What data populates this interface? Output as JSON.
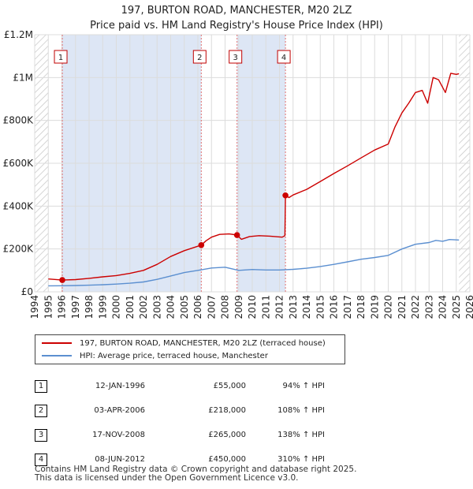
{
  "title_line1": "197, BURTON ROAD, MANCHESTER, M20 2LZ",
  "title_line2": "Price paid vs. HM Land Registry's House Price Index (HPI)",
  "chart_data": {
    "type": "line",
    "x_range": [
      1994,
      2026
    ],
    "ylim": [
      0,
      1200000
    ],
    "y_ticks": [
      0,
      200000,
      400000,
      600000,
      800000,
      1000000,
      1200000
    ],
    "y_tick_labels": [
      "£0",
      "£200K",
      "£400K",
      "£600K",
      "£800K",
      "£1M",
      "£1.2M"
    ],
    "x_ticks": [
      1994,
      1995,
      1996,
      1997,
      1998,
      1999,
      2000,
      2001,
      2002,
      2003,
      2004,
      2005,
      2006,
      2007,
      2008,
      2009,
      2010,
      2011,
      2012,
      2013,
      2014,
      2015,
      2016,
      2017,
      2018,
      2019,
      2020,
      2021,
      2022,
      2023,
      2024,
      2025,
      2026
    ],
    "grid": true,
    "hatched_ranges": [
      [
        1994,
        1995.0
      ],
      [
        2025.2,
        2026
      ]
    ],
    "shaded_ranges": [
      [
        1996.03,
        2006.25
      ],
      [
        2008.88,
        2012.44
      ]
    ],
    "series": [
      {
        "name": "197, BURTON ROAD, MANCHESTER, M20 2LZ (terraced house)",
        "color": "#cc0000",
        "points": [
          [
            1995.0,
            60000
          ],
          [
            1996.03,
            55000
          ],
          [
            1997,
            57000
          ],
          [
            1998,
            63000
          ],
          [
            1999,
            70000
          ],
          [
            2000,
            76000
          ],
          [
            2001,
            86000
          ],
          [
            2002,
            100000
          ],
          [
            2003,
            128000
          ],
          [
            2004,
            165000
          ],
          [
            2005,
            192000
          ],
          [
            2006.25,
            218000
          ],
          [
            2006.6,
            238000
          ],
          [
            2007,
            255000
          ],
          [
            2007.6,
            268000
          ],
          [
            2008.3,
            270000
          ],
          [
            2008.88,
            265000
          ],
          [
            2009.2,
            245000
          ],
          [
            2009.8,
            258000
          ],
          [
            2010.5,
            262000
          ],
          [
            2011.3,
            260000
          ],
          [
            2012.2,
            255000
          ],
          [
            2012.4,
            262000
          ],
          [
            2012.44,
            450000
          ],
          [
            2012.7,
            440000
          ],
          [
            2013,
            452000
          ],
          [
            2014,
            478000
          ],
          [
            2015,
            515000
          ],
          [
            2016,
            552000
          ],
          [
            2017,
            588000
          ],
          [
            2018,
            625000
          ],
          [
            2019,
            662000
          ],
          [
            2020,
            690000
          ],
          [
            2020.5,
            770000
          ],
          [
            2021,
            835000
          ],
          [
            2021.5,
            880000
          ],
          [
            2022,
            930000
          ],
          [
            2022.5,
            940000
          ],
          [
            2022.9,
            880000
          ],
          [
            2023.3,
            1000000
          ],
          [
            2023.7,
            990000
          ],
          [
            2024.2,
            930000
          ],
          [
            2024.6,
            1020000
          ],
          [
            2025.0,
            1015000
          ],
          [
            2025.2,
            1018000
          ]
        ]
      },
      {
        "name": "HPI: Average price, terraced house, Manchester",
        "color": "#5b8fd0",
        "points": [
          [
            1995.0,
            28000
          ],
          [
            1996,
            28500
          ],
          [
            1997,
            29500
          ],
          [
            1998,
            31000
          ],
          [
            1999,
            33000
          ],
          [
            2000,
            36000
          ],
          [
            2001,
            40000
          ],
          [
            2002,
            46000
          ],
          [
            2003,
            58000
          ],
          [
            2004,
            74000
          ],
          [
            2005,
            90000
          ],
          [
            2006,
            100000
          ],
          [
            2007,
            111000
          ],
          [
            2008,
            115000
          ],
          [
            2009,
            100000
          ],
          [
            2010,
            104000
          ],
          [
            2011,
            102000
          ],
          [
            2012,
            102000
          ],
          [
            2013,
            105000
          ],
          [
            2014,
            110000
          ],
          [
            2015,
            118000
          ],
          [
            2016,
            128000
          ],
          [
            2017,
            140000
          ],
          [
            2018,
            152000
          ],
          [
            2019,
            160000
          ],
          [
            2020,
            170000
          ],
          [
            2021,
            200000
          ],
          [
            2022,
            222000
          ],
          [
            2023,
            230000
          ],
          [
            2023.5,
            240000
          ],
          [
            2024,
            236000
          ],
          [
            2024.5,
            244000
          ],
          [
            2025.2,
            242000
          ]
        ]
      }
    ],
    "markers": [
      {
        "label": "1",
        "x": 1996.03,
        "y": 55000
      },
      {
        "label": "2",
        "x": 2006.25,
        "y": 218000
      },
      {
        "label": "3",
        "x": 2008.88,
        "y": 265000
      },
      {
        "label": "4",
        "x": 2012.44,
        "y": 450000
      }
    ]
  },
  "legend": {
    "price_label": "197, BURTON ROAD, MANCHESTER, M20 2LZ (terraced house)",
    "hpi_label": "HPI: Average price, terraced house, Manchester",
    "price_color": "#cc0000",
    "hpi_color": "#5b8fd0"
  },
  "transactions": [
    {
      "num": "1",
      "date": "12-JAN-1996",
      "price": "£55,000",
      "hpi": "94% ↑ HPI"
    },
    {
      "num": "2",
      "date": "03-APR-2006",
      "price": "£218,000",
      "hpi": "108% ↑ HPI"
    },
    {
      "num": "3",
      "date": "17-NOV-2008",
      "price": "£265,000",
      "hpi": "138% ↑ HPI"
    },
    {
      "num": "4",
      "date": "08-JUN-2012",
      "price": "£450,000",
      "hpi": "310% ↑ HPI"
    }
  ],
  "footer_line1": "Contains HM Land Registry data © Crown copyright and database right 2025.",
  "footer_line2": "This data is licensed under the Open Government Licence v3.0."
}
